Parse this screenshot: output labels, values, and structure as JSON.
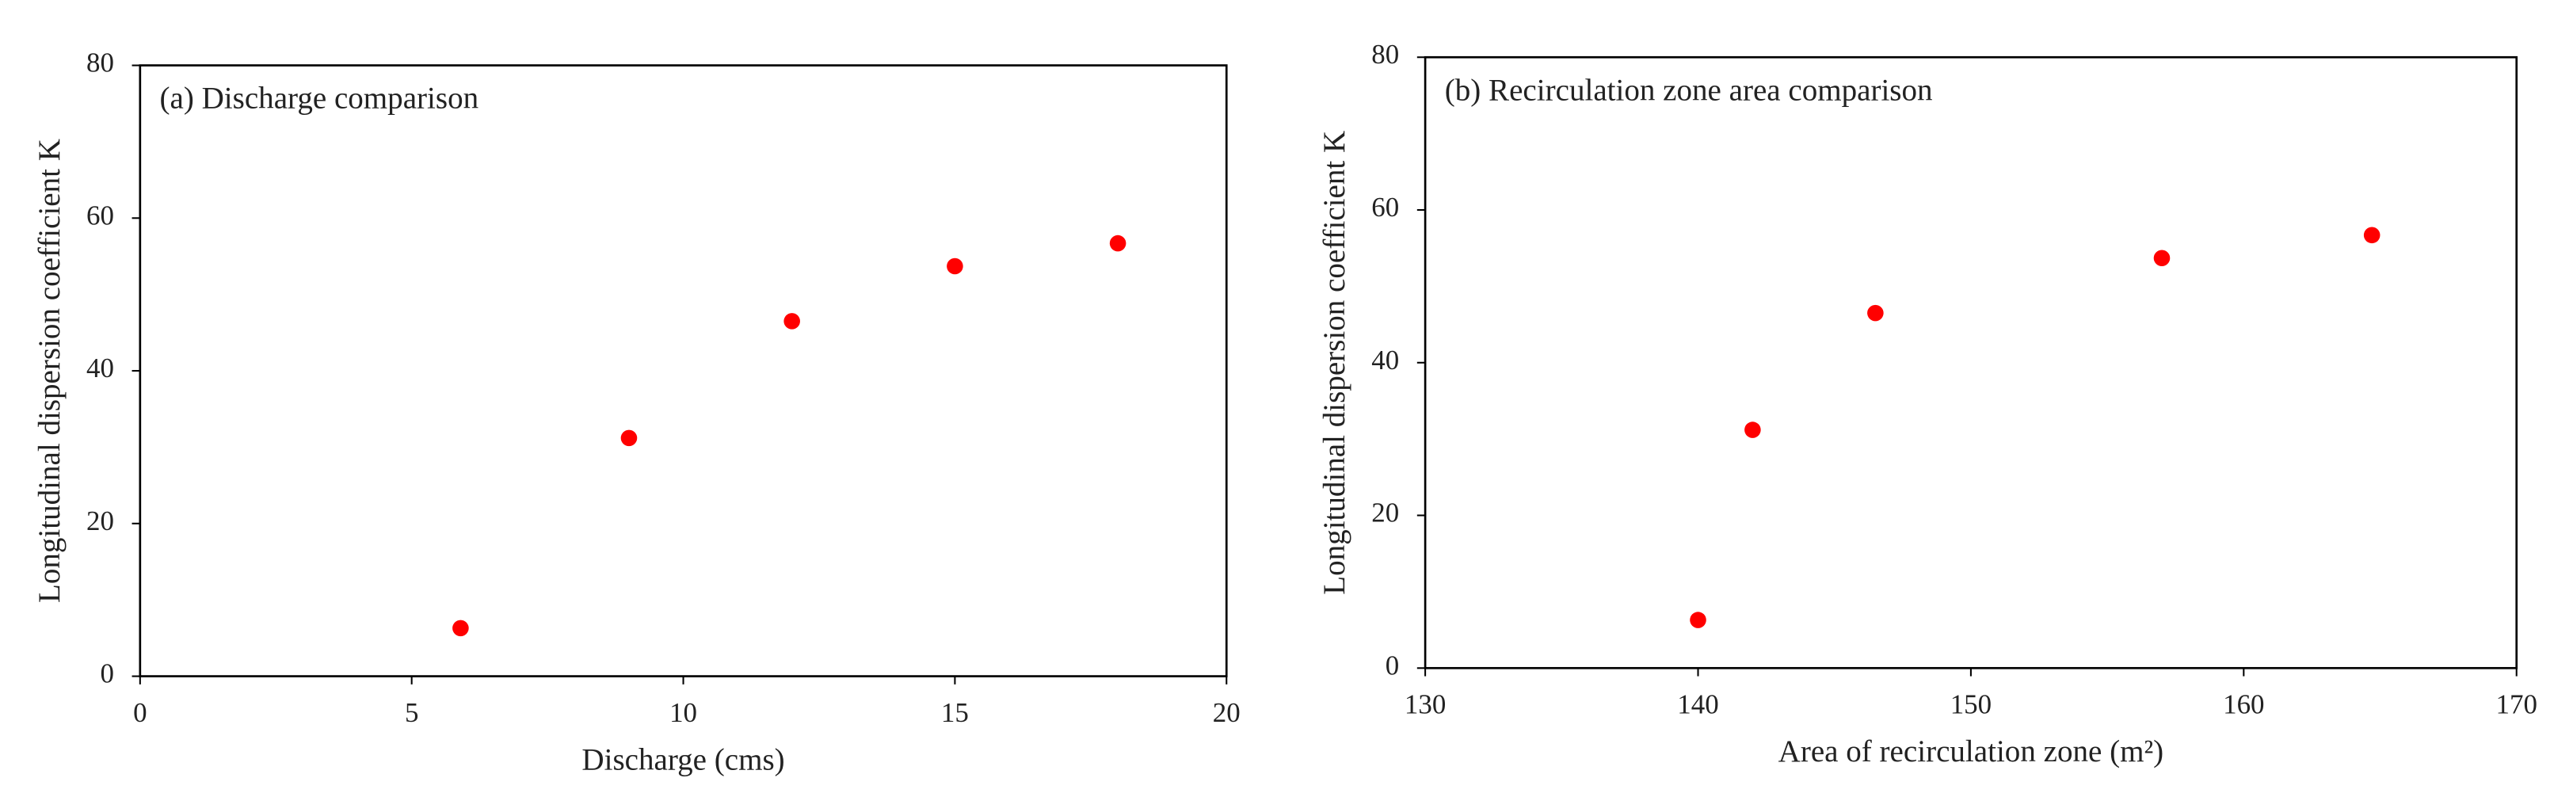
{
  "chart_data": [
    {
      "type": "scatter",
      "annotation": "(a) Discharge comparison",
      "xlabel": "Discharge (cms)",
      "ylabel": "Longitudinal dispersion coefficient K",
      "x": [
        5.9,
        9,
        12,
        15,
        18
      ],
      "values": [
        6.3,
        31.2,
        46.5,
        53.7,
        56.7
      ],
      "color": "#ff0000",
      "xlim": [
        0,
        20
      ],
      "xticks": [
        0,
        5,
        10,
        15,
        20
      ],
      "ylim": [
        0,
        80
      ],
      "yticks": [
        0,
        20,
        40,
        60,
        80
      ],
      "grid": false
    },
    {
      "type": "scatter",
      "annotation": "(b) Recirculation zone area comparison",
      "xlabel": "Area of recirculation zone (m²)",
      "ylabel": "Longitudinal dispersion coefficient K",
      "x": [
        140,
        142,
        146.5,
        157,
        164.7
      ],
      "values": [
        6.3,
        31.2,
        46.5,
        53.7,
        56.7
      ],
      "color": "#ff0000",
      "xlim": [
        130,
        170
      ],
      "xticks": [
        130,
        140,
        150,
        160,
        170
      ],
      "ylim": [
        0,
        80
      ],
      "yticks": [
        0,
        20,
        40,
        60,
        80
      ],
      "grid": false
    }
  ]
}
